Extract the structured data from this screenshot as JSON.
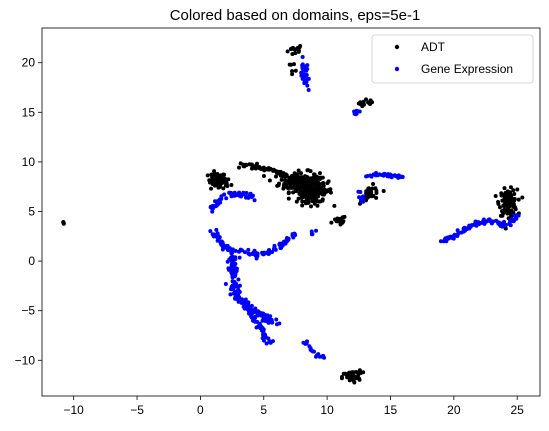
{
  "chart_data": {
    "type": "scatter",
    "title": "Colored based on domains, eps=5e-1",
    "xlabel": "",
    "ylabel": "",
    "xlim": [
      -12.5,
      26.8
    ],
    "ylim": [
      -13.6,
      23.5
    ],
    "xticks": [
      -10,
      -5,
      0,
      5,
      10,
      15,
      20,
      25
    ],
    "yticks": [
      -10,
      -5,
      0,
      5,
      10,
      15,
      20
    ],
    "grid": false,
    "legend_position": "top-right",
    "series": [
      {
        "name": "ADT",
        "color": "#000000",
        "clusters": [
          {
            "x": -10.8,
            "y": 3.8,
            "sx": 0.05,
            "sy": 0.1,
            "n": 4
          },
          {
            "x": 7.5,
            "y": 21.3,
            "sx": 0.3,
            "sy": 0.3,
            "n": 14
          },
          {
            "x": 7.3,
            "y": 19.9,
            "sx": 0.2,
            "sy": 0.4,
            "n": 6
          },
          {
            "x": 13.2,
            "y": 15.9,
            "sx": 0.35,
            "sy": 0.2,
            "n": 14
          },
          {
            "x": 1.3,
            "y": 8.2,
            "sx": 0.35,
            "sy": 0.35,
            "n": 40
          },
          {
            "x": 1.6,
            "y": 7.9,
            "sx": 0.4,
            "sy": 0.4,
            "n": 30
          },
          {
            "x": 7.8,
            "y": 8.0,
            "sx": 0.8,
            "sy": 0.5,
            "n": 170
          },
          {
            "x": 9.0,
            "y": 7.1,
            "sx": 0.7,
            "sy": 0.6,
            "n": 110
          },
          {
            "x": 8.5,
            "y": 6.2,
            "sx": 0.5,
            "sy": 0.4,
            "n": 30
          },
          {
            "x": 11.0,
            "y": 4.1,
            "sx": 0.25,
            "sy": 0.25,
            "n": 14
          },
          {
            "x": 13.5,
            "y": 6.8,
            "sx": 0.4,
            "sy": 0.4,
            "n": 30
          },
          {
            "x": 24.3,
            "y": 5.9,
            "sx": 0.35,
            "sy": 0.65,
            "n": 110
          },
          {
            "x": 11.9,
            "y": -11.7,
            "sx": 0.35,
            "sy": 0.3,
            "n": 50
          },
          {
            "x": 12.5,
            "y": -11.2,
            "sx": 0.2,
            "sy": 0.15,
            "n": 6
          }
        ],
        "paths": [
          {
            "points": [
              [
                3.0,
                9.6
              ],
              [
                4.5,
                9.5
              ],
              [
                5.7,
                9.2
              ],
              [
                6.8,
                8.6
              ]
            ],
            "jitter": 0.12,
            "n": 60
          }
        ]
      },
      {
        "name": "Gene Expression",
        "color": "#0000ff",
        "clusters": [
          {
            "x": 8.2,
            "y": 19.7,
            "sx": 0.1,
            "sy": 0.6,
            "n": 6
          },
          {
            "x": 8.8,
            "y": 2.9,
            "sx": 0.15,
            "sy": 0.2,
            "n": 4
          }
        ],
        "paths": [
          {
            "points": [
              [
                8.2,
                19.6
              ],
              [
                8.3,
                18.2
              ],
              [
                8.5,
                17.2
              ]
            ],
            "jitter": 0.15,
            "n": 25
          },
          {
            "points": [
              [
                11.9,
                14.7
              ],
              [
                12.5,
                15.2
              ],
              [
                12.9,
                15.5
              ]
            ],
            "jitter": 0.1,
            "n": 12
          },
          {
            "points": [
              [
                0.8,
                5.2
              ],
              [
                1.3,
                5.9
              ],
              [
                1.8,
                6.4
              ],
              [
                2.4,
                6.7
              ],
              [
                3.0,
                6.8
              ],
              [
                3.8,
                6.6
              ],
              [
                4.3,
                6.3
              ]
            ],
            "jitter": 0.15,
            "n": 55
          },
          {
            "points": [
              [
                13.0,
                8.6
              ],
              [
                14.2,
                8.7
              ],
              [
                15.5,
                8.6
              ],
              [
                16.0,
                8.4
              ]
            ],
            "jitter": 0.1,
            "n": 35
          },
          {
            "points": [
              [
                12.9,
                6.0
              ],
              [
                12.6,
                7.0
              ]
            ],
            "jitter": 0.15,
            "n": 10
          },
          {
            "points": [
              [
                1.0,
                2.9
              ],
              [
                1.8,
                1.5
              ],
              [
                2.5,
                1.0
              ],
              [
                3.2,
                0.9
              ],
              [
                4.5,
                0.7
              ],
              [
                5.5,
                1.0
              ],
              [
                6.3,
                1.6
              ],
              [
                7.0,
                2.3
              ],
              [
                7.5,
                2.8
              ]
            ],
            "jitter": 0.14,
            "n": 110
          },
          {
            "points": [
              [
                2.5,
                0.4
              ],
              [
                2.6,
                -1.0
              ],
              [
                2.7,
                -2.5
              ],
              [
                2.9,
                -3.4
              ],
              [
                3.6,
                -4.4
              ],
              [
                4.5,
                -5.2
              ],
              [
                5.3,
                -5.8
              ],
              [
                6.0,
                -6.3
              ]
            ],
            "jitter": 0.18,
            "n": 140
          },
          {
            "points": [
              [
                3.6,
                -4.4
              ],
              [
                4.2,
                -5.7
              ],
              [
                4.8,
                -6.5
              ],
              [
                5.0,
                -7.3
              ],
              [
                5.6,
                -8.4
              ]
            ],
            "jitter": 0.14,
            "n": 50
          },
          {
            "points": [
              [
                8.2,
                -8.2
              ],
              [
                8.7,
                -8.8
              ],
              [
                9.2,
                -9.5
              ],
              [
                9.7,
                -9.8
              ]
            ],
            "jitter": 0.1,
            "n": 20
          },
          {
            "points": [
              [
                19.0,
                2.0
              ],
              [
                20.0,
                2.5
              ],
              [
                21.0,
                3.3
              ],
              [
                21.8,
                3.8
              ],
              [
                22.5,
                4.0
              ],
              [
                23.2,
                3.9
              ],
              [
                23.8,
                3.7
              ],
              [
                24.5,
                4.0
              ],
              [
                25.0,
                4.6
              ]
            ],
            "jitter": 0.12,
            "n": 90
          }
        ]
      }
    ]
  }
}
